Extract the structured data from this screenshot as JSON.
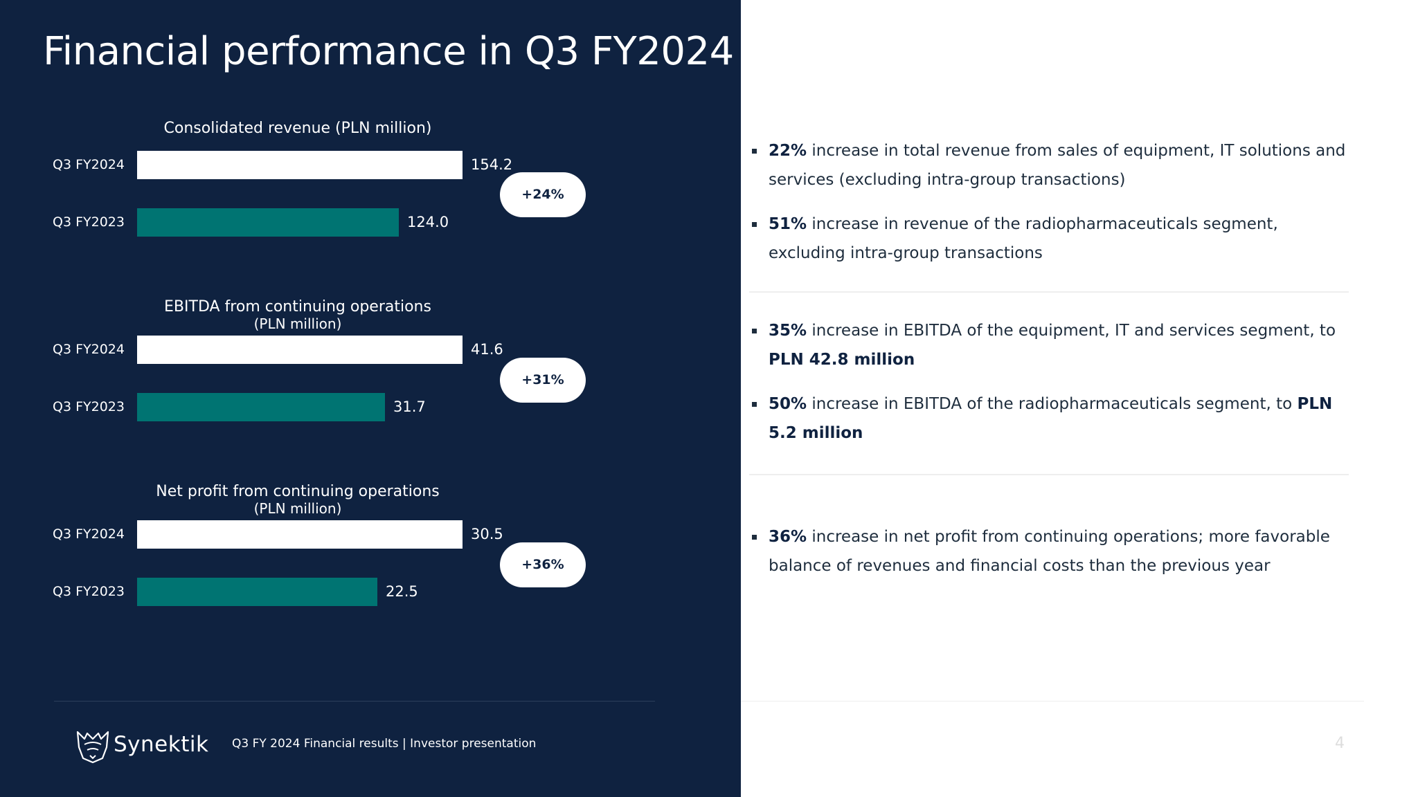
{
  "title": "Financial performance in Q3 FY2024",
  "colors": {
    "background_panel": "#0f2240",
    "current_bar": "#ffffff",
    "previous_bar": "#007472",
    "text_dark": "#0f2240"
  },
  "chart_data": [
    {
      "type": "bar",
      "orientation": "horizontal",
      "title": "Consolidated revenue (PLN million)",
      "subtitle": "",
      "categories": [
        "Q3 FY2024",
        "Q3 FY2023"
      ],
      "values": [
        154.2,
        124.0
      ],
      "value_labels": [
        "154.2",
        "124.0"
      ],
      "change_label": "+24%"
    },
    {
      "type": "bar",
      "orientation": "horizontal",
      "title": "EBITDA from continuing operations",
      "subtitle": "(PLN million)",
      "categories": [
        "Q3 FY2024",
        "Q3 FY2023"
      ],
      "values": [
        41.6,
        31.7
      ],
      "value_labels": [
        "41.6",
        "31.7"
      ],
      "change_label": "+31%"
    },
    {
      "type": "bar",
      "orientation": "horizontal",
      "title": "Net profit from continuing operations",
      "subtitle": "(PLN million)",
      "categories": [
        "Q3 FY2024",
        "Q3 FY2023"
      ],
      "values": [
        30.5,
        22.5
      ],
      "value_labels": [
        "30.5",
        "22.5"
      ],
      "change_label": "+36%"
    }
  ],
  "bullets": {
    "revenue": [
      {
        "bold": "22%",
        "text": " increase in total revenue from sales of equipment, IT solutions and services (excluding intra-group transactions)"
      },
      {
        "bold": "51%",
        "text": " increase in revenue of the radiopharmaceuticals segment, excluding intra-group transactions"
      }
    ],
    "ebitda": [
      {
        "bold": "35%",
        "text": " increase in EBITDA of the equipment, IT and services segment, to ",
        "bold2": "PLN 42.8 million"
      },
      {
        "bold": "50%",
        "text": " increase in EBITDA of the radiopharmaceuticals segment, to ",
        "bold2": "PLN 5.2 million"
      }
    ],
    "net_profit": [
      {
        "bold": "36%",
        "text": " increase in net profit from  continuing operations; more favorable balance of revenues and financial costs than the previous year"
      }
    ]
  },
  "footer": {
    "logo_text": "Synektik",
    "text": "Q3 FY 2024 Financial results |  Investor presentation",
    "page_number": "4"
  }
}
